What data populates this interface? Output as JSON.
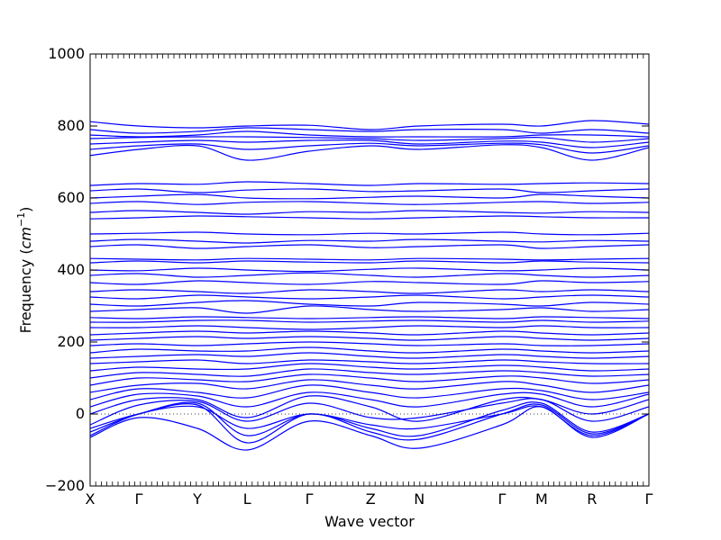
{
  "chart_data": {
    "type": "line",
    "xlabel": "Wave vector",
    "ylabel_prefix": "Frequency (",
    "ylabel_unit": "cm",
    "ylabel_exponent": "−1",
    "ylabel_suffix": ")",
    "ylim": [
      -200,
      1000
    ],
    "yticks": [
      -200,
      0,
      200,
      400,
      600,
      800,
      1000
    ],
    "xlim": [
      0,
      1
    ],
    "xticks": [
      {
        "label": "X",
        "pos": 0.0
      },
      {
        "label": "Γ",
        "pos": 0.087
      },
      {
        "label": "Y",
        "pos": 0.192
      },
      {
        "label": "L",
        "pos": 0.281
      },
      {
        "label": "Γ",
        "pos": 0.392
      },
      {
        "label": "Z",
        "pos": 0.502
      },
      {
        "label": "N",
        "pos": 0.589
      },
      {
        "label": "Γ",
        "pos": 0.737
      },
      {
        "label": "M",
        "pos": 0.808
      },
      {
        "label": "R",
        "pos": 0.898
      },
      {
        "label": "Γ",
        "pos": 1.0
      }
    ],
    "zero_line": true,
    "line_color": "#0000ff",
    "series": [
      {
        "x": [
          0,
          0.087,
          0.192,
          0.281,
          0.392,
          0.502,
          0.589,
          0.737,
          0.808,
          0.898,
          1.0
        ],
        "y": [
          -60,
          0,
          20,
          -40,
          0,
          -30,
          -40,
          0,
          20,
          -60,
          0
        ]
      },
      {
        "x": [
          0,
          0.087,
          0.192,
          0.281,
          0.392,
          0.502,
          0.589,
          0.737,
          0.808,
          0.898,
          1.0
        ],
        "y": [
          -65,
          -10,
          -40,
          -100,
          -20,
          -60,
          -95,
          -30,
          20,
          -65,
          0
        ]
      },
      {
        "x": [
          0,
          0.087,
          0.192,
          0.281,
          0.392,
          0.502,
          0.589,
          0.737,
          0.808,
          0.898,
          1.0
        ],
        "y": [
          -40,
          0,
          25,
          -80,
          0,
          -50,
          -70,
          0,
          25,
          -55,
          0
        ]
      },
      {
        "x": [
          0,
          0.087,
          0.192,
          0.281,
          0.392,
          0.502,
          0.589,
          0.737,
          0.808,
          0.898,
          1.0
        ],
        "y": [
          -50,
          0,
          30,
          -60,
          0,
          -40,
          -60,
          10,
          30,
          -50,
          0
        ]
      },
      {
        "x": [
          0,
          0.087,
          0.192,
          0.281,
          0.392,
          0.502,
          0.589,
          0.737,
          0.808,
          0.898,
          1.0
        ],
        "y": [
          -30,
          25,
          35,
          -20,
          30,
          -10,
          -10,
          30,
          40,
          -20,
          20
        ]
      },
      {
        "x": [
          0,
          0.087,
          0.192,
          0.281,
          0.392,
          0.502,
          0.589,
          0.737,
          0.808,
          0.898,
          1.0
        ],
        "y": [
          0,
          40,
          40,
          -10,
          50,
          20,
          -20,
          40,
          40,
          0,
          40
        ]
      },
      {
        "x": [
          0,
          0.087,
          0.192,
          0.281,
          0.392,
          0.502,
          0.589,
          0.737,
          0.808,
          0.898,
          1.0
        ],
        "y": [
          20,
          55,
          50,
          20,
          60,
          40,
          20,
          55,
          55,
          20,
          55
        ]
      },
      {
        "x": [
          0,
          0.087,
          0.192,
          0.281,
          0.392,
          0.502,
          0.589,
          0.737,
          0.808,
          0.898,
          1.0
        ],
        "y": [
          40,
          70,
          60,
          45,
          80,
          60,
          45,
          70,
          65,
          40,
          60
        ]
      },
      {
        "x": [
          0,
          0.087,
          0.192,
          0.281,
          0.392,
          0.502,
          0.589,
          0.737,
          0.808,
          0.898,
          1.0
        ],
        "y": [
          60,
          80,
          85,
          70,
          95,
          80,
          70,
          90,
          80,
          60,
          80
        ]
      },
      {
        "x": [
          0,
          0.087,
          0.192,
          0.281,
          0.392,
          0.502,
          0.589,
          0.737,
          0.808,
          0.898,
          1.0
        ],
        "y": [
          80,
          100,
          95,
          90,
          110,
          100,
          90,
          105,
          100,
          85,
          95
        ]
      },
      {
        "x": [
          0,
          0.087,
          0.192,
          0.281,
          0.392,
          0.502,
          0.589,
          0.737,
          0.808,
          0.898,
          1.0
        ],
        "y": [
          100,
          115,
          110,
          105,
          125,
          115,
          110,
          120,
          115,
          105,
          110
        ]
      },
      {
        "x": [
          0,
          0.087,
          0.192,
          0.281,
          0.392,
          0.502,
          0.589,
          0.737,
          0.808,
          0.898,
          1.0
        ],
        "y": [
          120,
          130,
          125,
          125,
          140,
          130,
          125,
          135,
          130,
          120,
          125
        ]
      },
      {
        "x": [
          0,
          0.087,
          0.192,
          0.281,
          0.392,
          0.502,
          0.589,
          0.737,
          0.808,
          0.898,
          1.0
        ],
        "y": [
          140,
          145,
          150,
          140,
          150,
          145,
          140,
          150,
          145,
          140,
          140
        ]
      },
      {
        "x": [
          0,
          0.087,
          0.192,
          0.281,
          0.392,
          0.502,
          0.589,
          0.737,
          0.808,
          0.898,
          1.0
        ],
        "y": [
          155,
          160,
          165,
          160,
          170,
          160,
          155,
          165,
          160,
          155,
          160
        ]
      },
      {
        "x": [
          0,
          0.087,
          0.192,
          0.281,
          0.392,
          0.502,
          0.589,
          0.737,
          0.808,
          0.898,
          1.0
        ],
        "y": [
          170,
          180,
          175,
          175,
          185,
          175,
          170,
          180,
          175,
          170,
          175
        ]
      },
      {
        "x": [
          0,
          0.087,
          0.192,
          0.281,
          0.392,
          0.502,
          0.589,
          0.737,
          0.808,
          0.898,
          1.0
        ],
        "y": [
          190,
          195,
          190,
          195,
          200,
          195,
          190,
          195,
          190,
          190,
          195
        ]
      },
      {
        "x": [
          0,
          0.087,
          0.192,
          0.281,
          0.392,
          0.502,
          0.589,
          0.737,
          0.808,
          0.898,
          1.0
        ],
        "y": [
          205,
          210,
          215,
          210,
          215,
          210,
          205,
          215,
          210,
          205,
          210
        ]
      },
      {
        "x": [
          0,
          0.087,
          0.192,
          0.281,
          0.392,
          0.502,
          0.589,
          0.737,
          0.808,
          0.898,
          1.0
        ],
        "y": [
          220,
          225,
          230,
          225,
          230,
          225,
          220,
          230,
          225,
          220,
          225
        ]
      },
      {
        "x": [
          0,
          0.087,
          0.192,
          0.281,
          0.392,
          0.502,
          0.589,
          0.737,
          0.808,
          0.898,
          1.0
        ],
        "y": [
          240,
          240,
          245,
          240,
          235,
          240,
          245,
          240,
          245,
          240,
          240
        ]
      },
      {
        "x": [
          0,
          0.087,
          0.192,
          0.281,
          0.392,
          0.502,
          0.589,
          0.737,
          0.808,
          0.898,
          1.0
        ],
        "y": [
          255,
          255,
          260,
          260,
          255,
          258,
          260,
          255,
          260,
          255,
          258
        ]
      },
      {
        "x": [
          0,
          0.087,
          0.192,
          0.281,
          0.392,
          0.502,
          0.589,
          0.737,
          0.808,
          0.898,
          1.0
        ],
        "y": [
          268,
          265,
          270,
          268,
          265,
          268,
          270,
          265,
          270,
          268,
          265
        ]
      },
      {
        "x": [
          0,
          0.087,
          0.192,
          0.281,
          0.392,
          0.502,
          0.589,
          0.737,
          0.808,
          0.898,
          1.0
        ],
        "y": [
          285,
          290,
          295,
          280,
          300,
          290,
          285,
          290,
          295,
          285,
          290
        ]
      },
      {
        "x": [
          0,
          0.087,
          0.192,
          0.281,
          0.392,
          0.502,
          0.589,
          0.737,
          0.808,
          0.898,
          1.0
        ],
        "y": [
          305,
          300,
          310,
          315,
          305,
          300,
          310,
          305,
          300,
          310,
          305
        ]
      },
      {
        "x": [
          0,
          0.087,
          0.192,
          0.281,
          0.392,
          0.502,
          0.589,
          0.737,
          0.808,
          0.898,
          1.0
        ],
        "y": [
          325,
          320,
          330,
          325,
          320,
          325,
          330,
          320,
          325,
          330,
          325
        ]
      },
      {
        "x": [
          0,
          0.087,
          0.192,
          0.281,
          0.392,
          0.502,
          0.589,
          0.737,
          0.808,
          0.898,
          1.0
        ],
        "y": [
          340,
          345,
          340,
          335,
          345,
          340,
          335,
          345,
          340,
          345,
          340
        ]
      },
      {
        "x": [
          0,
          0.087,
          0.192,
          0.281,
          0.392,
          0.502,
          0.589,
          0.737,
          0.808,
          0.898,
          1.0
        ],
        "y": [
          365,
          360,
          370,
          365,
          360,
          368,
          365,
          360,
          370,
          365,
          368
        ]
      },
      {
        "x": [
          0,
          0.087,
          0.192,
          0.281,
          0.392,
          0.502,
          0.589,
          0.737,
          0.808,
          0.898,
          1.0
        ],
        "y": [
          385,
          390,
          380,
          385,
          392,
          385,
          380,
          390,
          385,
          380,
          385
        ]
      },
      {
        "x": [
          0,
          0.087,
          0.192,
          0.281,
          0.392,
          0.502,
          0.589,
          0.737,
          0.808,
          0.898,
          1.0
        ],
        "y": [
          400,
          398,
          405,
          400,
          396,
          402,
          405,
          398,
          400,
          405,
          400
        ]
      },
      {
        "x": [
          0,
          0.087,
          0.192,
          0.281,
          0.392,
          0.502,
          0.589,
          0.737,
          0.808,
          0.898,
          1.0
        ],
        "y": [
          420,
          425,
          420,
          425,
          422,
          420,
          425,
          420,
          425,
          422,
          420
        ]
      },
      {
        "x": [
          0,
          0.087,
          0.192,
          0.281,
          0.392,
          0.502,
          0.589,
          0.737,
          0.808,
          0.898,
          1.0
        ],
        "y": [
          432,
          430,
          428,
          432,
          430,
          428,
          432,
          430,
          428,
          430,
          432
        ]
      },
      {
        "x": [
          0,
          0.087,
          0.192,
          0.281,
          0.392,
          0.502,
          0.589,
          0.737,
          0.808,
          0.898,
          1.0
        ],
        "y": [
          465,
          470,
          460,
          465,
          470,
          462,
          465,
          470,
          460,
          465,
          470
        ]
      },
      {
        "x": [
          0,
          0.087,
          0.192,
          0.281,
          0.392,
          0.502,
          0.589,
          0.737,
          0.808,
          0.898,
          1.0
        ],
        "y": [
          480,
          485,
          480,
          475,
          482,
          480,
          485,
          480,
          478,
          482,
          480
        ]
      },
      {
        "x": [
          0,
          0.087,
          0.192,
          0.281,
          0.392,
          0.502,
          0.589,
          0.737,
          0.808,
          0.898,
          1.0
        ],
        "y": [
          500,
          502,
          505,
          500,
          498,
          502,
          500,
          505,
          500,
          498,
          502
        ]
      },
      {
        "x": [
          0,
          0.087,
          0.192,
          0.281,
          0.392,
          0.502,
          0.589,
          0.737,
          0.808,
          0.898,
          1.0
        ],
        "y": [
          542,
          545,
          550,
          548,
          545,
          542,
          545,
          550,
          548,
          545,
          545
        ]
      },
      {
        "x": [
          0,
          0.087,
          0.192,
          0.281,
          0.392,
          0.502,
          0.589,
          0.737,
          0.808,
          0.898,
          1.0
        ],
        "y": [
          560,
          565,
          560,
          555,
          562,
          560,
          565,
          560,
          558,
          562,
          560
        ]
      },
      {
        "x": [
          0,
          0.087,
          0.192,
          0.281,
          0.392,
          0.502,
          0.589,
          0.737,
          0.808,
          0.898,
          1.0
        ],
        "y": [
          585,
          590,
          582,
          588,
          590,
          585,
          582,
          588,
          590,
          585,
          588
        ]
      },
      {
        "x": [
          0,
          0.087,
          0.192,
          0.281,
          0.392,
          0.502,
          0.589,
          0.737,
          0.808,
          0.898,
          1.0
        ],
        "y": [
          600,
          605,
          610,
          600,
          598,
          602,
          605,
          600,
          610,
          605,
          600
        ]
      },
      {
        "x": [
          0,
          0.087,
          0.192,
          0.281,
          0.392,
          0.502,
          0.589,
          0.737,
          0.808,
          0.898,
          1.0
        ],
        "y": [
          620,
          625,
          615,
          622,
          625,
          618,
          620,
          625,
          615,
          620,
          625
        ]
      },
      {
        "x": [
          0,
          0.087,
          0.192,
          0.281,
          0.392,
          0.502,
          0.589,
          0.737,
          0.808,
          0.898,
          1.0
        ],
        "y": [
          635,
          640,
          638,
          645,
          640,
          635,
          640,
          638,
          640,
          642,
          640
        ]
      },
      {
        "x": [
          0,
          0.087,
          0.192,
          0.281,
          0.392,
          0.502,
          0.589,
          0.737,
          0.808,
          0.898,
          1.0
        ],
        "y": [
          718,
          735,
          745,
          705,
          730,
          745,
          735,
          748,
          740,
          705,
          740
        ]
      },
      {
        "x": [
          0,
          0.087,
          0.192,
          0.281,
          0.392,
          0.502,
          0.589,
          0.737,
          0.808,
          0.898,
          1.0
        ],
        "y": [
          735,
          745,
          750,
          735,
          745,
          752,
          745,
          752,
          748,
          725,
          745
        ]
      },
      {
        "x": [
          0,
          0.087,
          0.192,
          0.281,
          0.392,
          0.502,
          0.589,
          0.737,
          0.808,
          0.898,
          1.0
        ],
        "y": [
          750,
          755,
          760,
          755,
          760,
          760,
          750,
          758,
          755,
          740,
          755
        ]
      },
      {
        "x": [
          0,
          0.087,
          0.192,
          0.281,
          0.392,
          0.502,
          0.589,
          0.737,
          0.808,
          0.898,
          1.0
        ],
        "y": [
          765,
          768,
          770,
          770,
          768,
          765,
          760,
          765,
          768,
          755,
          765
        ]
      },
      {
        "x": [
          0,
          0.087,
          0.192,
          0.281,
          0.392,
          0.502,
          0.589,
          0.737,
          0.808,
          0.898,
          1.0
        ],
        "y": [
          775,
          770,
          775,
          785,
          775,
          770,
          770,
          770,
          775,
          775,
          770
        ]
      },
      {
        "x": [
          0,
          0.087,
          0.192,
          0.281,
          0.392,
          0.502,
          0.589,
          0.737,
          0.808,
          0.898,
          1.0
        ],
        "y": [
          790,
          780,
          785,
          795,
          790,
          785,
          790,
          790,
          780,
          790,
          780
        ]
      },
      {
        "x": [
          0,
          0.087,
          0.192,
          0.281,
          0.392,
          0.502,
          0.589,
          0.737,
          0.808,
          0.898,
          1.0
        ],
        "y": [
          812,
          800,
          795,
          800,
          802,
          790,
          800,
          805,
          800,
          815,
          805
        ]
      }
    ]
  }
}
